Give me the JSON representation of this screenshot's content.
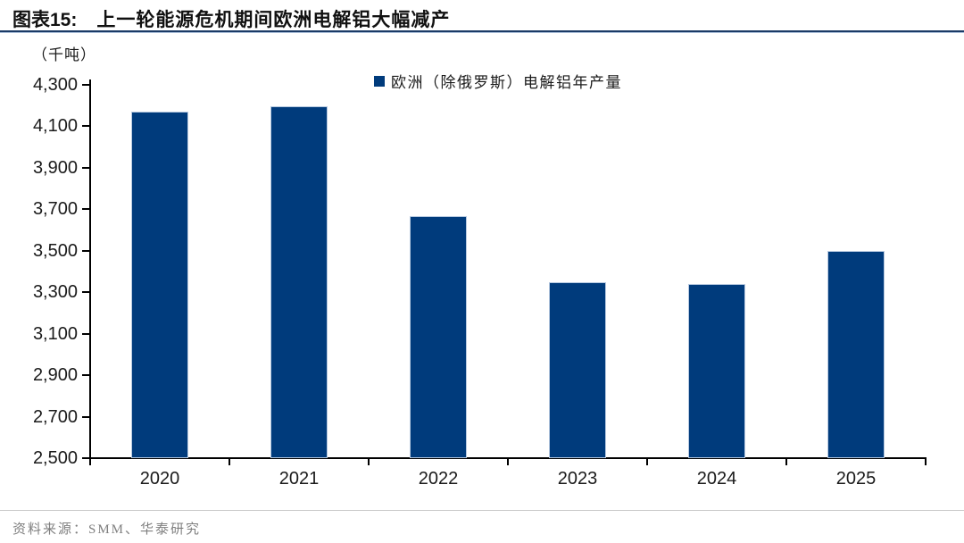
{
  "header": {
    "tag": "图表15:",
    "title": "上一轮能源危机期间欧洲电解铝大幅减产"
  },
  "unit_label": "（千吨）",
  "legend": {
    "label": "欧洲（除俄罗斯）电解铝年产量"
  },
  "footer": {
    "source": "资料来源：SMM、华泰研究"
  },
  "colors": {
    "bar": "#003B7C",
    "bar_border": "#B7C9E0",
    "axis": "#000000",
    "title_rule_dark": "#1B3A66",
    "title_rule_light": "#AEC2DC",
    "footer_rule": "#C9C9C9",
    "source_text": "#7F7F7F",
    "text": "#1A1A1A"
  },
  "chart_data": {
    "type": "bar",
    "title": "上一轮能源危机期间欧洲电解铝大幅减产",
    "categories": [
      "2020",
      "2021",
      "2022",
      "2023",
      "2024",
      "2025"
    ],
    "series": [
      {
        "name": "欧洲（除俄罗斯）电解铝年产量",
        "values": [
          4170,
          4195,
          3665,
          3350,
          3340,
          3500
        ]
      }
    ],
    "xlabel": "",
    "ylabel": "（千吨）",
    "ylim": [
      2500,
      4300
    ],
    "ytick_step": 200,
    "grid": false,
    "legend_position": "top-center"
  }
}
